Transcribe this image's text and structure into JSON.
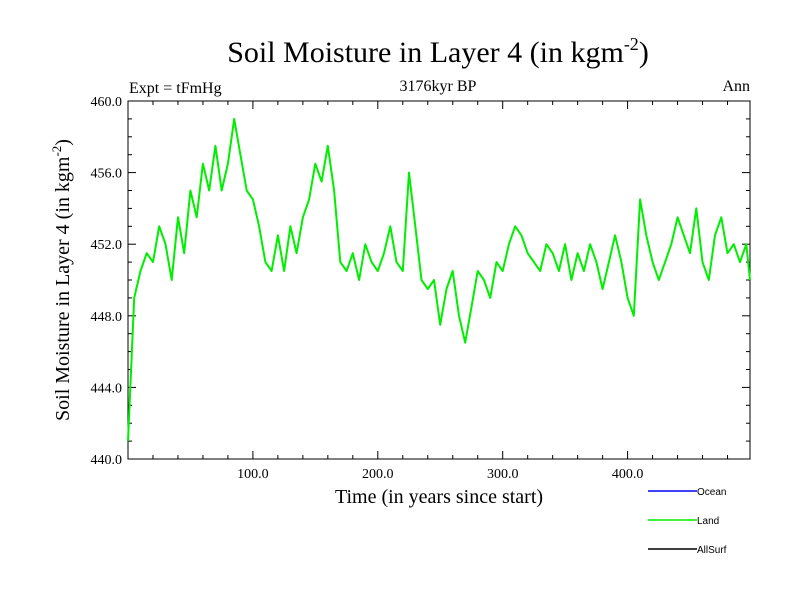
{
  "chart_data": {
    "type": "line",
    "title": "Soil Moisture in Layer 4 (in kgm",
    "title_sup": "-2",
    "title_close": ")",
    "subtitle": "3176kyr BP",
    "left_label": "Expt = tFmHg",
    "right_label": "Ann",
    "xlabel": "Time (in years since start)",
    "ylabel": "Soil Moisture in Layer 4 (in kgm",
    "ylabel_sup": "-2",
    "ylabel_close": ")",
    "xlim": [
      0,
      498
    ],
    "ylim": [
      440,
      460
    ],
    "x_ticks": [
      100,
      200,
      300,
      400
    ],
    "x_tick_labels": [
      "100.0",
      "200.0",
      "300.0",
      "400.0"
    ],
    "y_ticks": [
      440,
      444,
      448,
      452,
      456,
      460
    ],
    "y_tick_labels": [
      "440.0",
      "444.0",
      "448.0",
      "452.0",
      "456.0",
      "460.0"
    ],
    "legend": [
      {
        "name": "Ocean",
        "color": "#0000ff"
      },
      {
        "name": "Land",
        "color": "#00ee00"
      },
      {
        "name": "AllSurf",
        "color": "#000000"
      }
    ],
    "series": [
      {
        "name": "Land",
        "color": "#00ee00",
        "x": [
          0,
          5,
          10,
          15,
          20,
          25,
          30,
          35,
          40,
          45,
          50,
          55,
          60,
          65,
          70,
          75,
          80,
          85,
          90,
          95,
          100,
          105,
          110,
          115,
          120,
          125,
          130,
          135,
          140,
          145,
          150,
          155,
          160,
          165,
          170,
          175,
          180,
          185,
          190,
          195,
          200,
          205,
          210,
          215,
          220,
          225,
          230,
          235,
          240,
          245,
          250,
          255,
          260,
          265,
          270,
          275,
          280,
          285,
          290,
          295,
          300,
          305,
          310,
          315,
          320,
          325,
          330,
          335,
          340,
          345,
          350,
          355,
          360,
          365,
          370,
          375,
          380,
          385,
          390,
          395,
          400,
          405,
          410,
          415,
          420,
          425,
          430,
          435,
          440,
          445,
          450,
          455,
          460,
          465,
          470,
          475,
          480,
          485,
          490,
          495,
          498
        ],
        "values": [
          441,
          449,
          450.5,
          451.5,
          451,
          453,
          452,
          450,
          453.5,
          451.5,
          455,
          453.5,
          456.5,
          455,
          457.5,
          455,
          456.5,
          459,
          457,
          455,
          454.5,
          453,
          451,
          450.5,
          452.5,
          450.5,
          453,
          451.5,
          453.5,
          454.5,
          456.5,
          455.5,
          457.5,
          455,
          451,
          450.5,
          451.5,
          450,
          452,
          451,
          450.5,
          451.5,
          453,
          451,
          450.5,
          456,
          453,
          450,
          449.5,
          450,
          447.5,
          449.5,
          450.5,
          448,
          446.5,
          448.5,
          450.5,
          450,
          449,
          451,
          450.5,
          452,
          453,
          452.5,
          451.5,
          451,
          450.5,
          452,
          451.5,
          450.5,
          452,
          450,
          451.5,
          450.5,
          452,
          451,
          449.5,
          451,
          452.5,
          451,
          449,
          448,
          454.5,
          452.5,
          451,
          450,
          451,
          452,
          453.5,
          452.5,
          451.5,
          454,
          451,
          450,
          452.5,
          453.5,
          451.5,
          452,
          451,
          452,
          450
        ]
      }
    ]
  }
}
